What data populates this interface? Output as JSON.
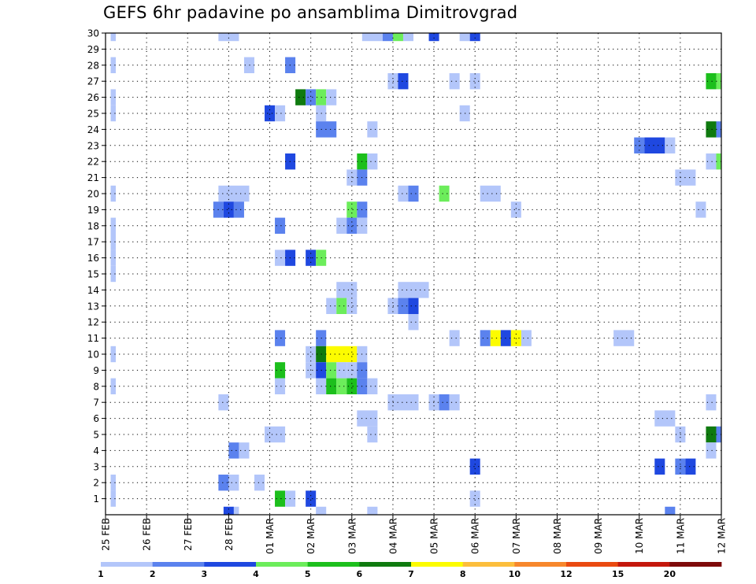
{
  "title": "GEFS 6hr padavine po ansamblima Dimitrovgrad",
  "chart_data": {
    "type": "heatmap",
    "title": "GEFS 6hr padavine po ansamblima Dimitrovgrad",
    "x_tick_labels": [
      "25 FEB",
      "26 FEB",
      "27 FEB",
      "28 FEB",
      "01 MAR",
      "02 MAR",
      "03 MAR",
      "04 MAR",
      "05 MAR",
      "06 MAR",
      "07 MAR",
      "08 MAR",
      "09 MAR",
      "10 MAR",
      "11 MAR",
      "12 MAR"
    ],
    "x_range_days": [
      0,
      15
    ],
    "steps_per_day": 4,
    "y_tick_labels": [
      "1",
      "2",
      "3",
      "4",
      "5",
      "6",
      "7",
      "8",
      "9",
      "10",
      "11",
      "12",
      "13",
      "14",
      "15",
      "16",
      "17",
      "18",
      "19",
      "20",
      "21",
      "22",
      "23",
      "24",
      "25",
      "26",
      "27",
      "28",
      "29",
      "30"
    ],
    "y_range": [
      0,
      30
    ],
    "grid": true,
    "colorbar": {
      "levels": [
        "1",
        "2",
        "3",
        "4",
        "5",
        "6",
        "7",
        "8",
        "10",
        "12",
        "15",
        "20"
      ],
      "colors": [
        "#b3c6fa",
        "#5b82ee",
        "#1f48e0",
        "#6ced5b",
        "#1cbf1c",
        "#0f7a0f",
        "#fcfc00",
        "#fcbe3c",
        "#f7872c",
        "#ea4a10",
        "#c4170c",
        "#7e0a0a"
      ]
    },
    "cells": [
      [
        30,
        0.5,
        1,
        0
      ],
      [
        30,
        11,
        13,
        0
      ],
      [
        30,
        25,
        27,
        0
      ],
      [
        30,
        27,
        28,
        1
      ],
      [
        30,
        28,
        29,
        3
      ],
      [
        30,
        29,
        30,
        0
      ],
      [
        30,
        31.5,
        32.5,
        2
      ],
      [
        30,
        34.5,
        35.5,
        0
      ],
      [
        30,
        35.5,
        36.5,
        2
      ],
      [
        28,
        0.5,
        1,
        0
      ],
      [
        28,
        13.5,
        14.5,
        0
      ],
      [
        28,
        17.5,
        18.5,
        1
      ],
      [
        27,
        27.5,
        28.5,
        0
      ],
      [
        27,
        28.5,
        29.5,
        2
      ],
      [
        27,
        33.5,
        34.5,
        0
      ],
      [
        27,
        35.5,
        36.5,
        0
      ],
      [
        27,
        58.5,
        59.5,
        4
      ],
      [
        27,
        59.5,
        60,
        3
      ],
      [
        26,
        0.5,
        1,
        0
      ],
      [
        26,
        18.5,
        19.5,
        5
      ],
      [
        26,
        19.5,
        20.5,
        1
      ],
      [
        26,
        20.5,
        21.5,
        3
      ],
      [
        26,
        21.5,
        22.5,
        0
      ],
      [
        25,
        0.5,
        1,
        0
      ],
      [
        25,
        15.5,
        16.5,
        2
      ],
      [
        25,
        16.5,
        17.5,
        0
      ],
      [
        25,
        20.5,
        21.5,
        0
      ],
      [
        25,
        34.5,
        35.5,
        0
      ],
      [
        24,
        20.5,
        22.5,
        1
      ],
      [
        24,
        25.5,
        26.5,
        0
      ],
      [
        24,
        58.5,
        59.5,
        5
      ],
      [
        24,
        59.5,
        60,
        1
      ],
      [
        23,
        51.5,
        52.5,
        1
      ],
      [
        23,
        52.5,
        54.5,
        2
      ],
      [
        23,
        54.5,
        55.5,
        0
      ],
      [
        22,
        17.5,
        18.5,
        2
      ],
      [
        22,
        24.5,
        25.5,
        4
      ],
      [
        22,
        25.5,
        26.5,
        0
      ],
      [
        22,
        58.5,
        59.5,
        0
      ],
      [
        22,
        59.5,
        60,
        3
      ],
      [
        21,
        23.5,
        24.5,
        0
      ],
      [
        21,
        24.5,
        25.5,
        1
      ],
      [
        21,
        55.5,
        57.5,
        0
      ],
      [
        20,
        0.5,
        1,
        0
      ],
      [
        20,
        11,
        14,
        0
      ],
      [
        20,
        28.5,
        29.5,
        0
      ],
      [
        20,
        29.5,
        30.5,
        1
      ],
      [
        20,
        32.5,
        33.5,
        3
      ],
      [
        20,
        36.5,
        38.5,
        0
      ],
      [
        19,
        10.5,
        11.5,
        1
      ],
      [
        19,
        11.5,
        12.5,
        2
      ],
      [
        19,
        12.5,
        13.5,
        1
      ],
      [
        19,
        23.5,
        24.5,
        3
      ],
      [
        19,
        24.5,
        25.5,
        1
      ],
      [
        19,
        39.5,
        40.5,
        0
      ],
      [
        19,
        57.5,
        58.5,
        0
      ],
      [
        18,
        0.5,
        1,
        0
      ],
      [
        18,
        16.5,
        17.5,
        1
      ],
      [
        18,
        22.5,
        23.5,
        0
      ],
      [
        18,
        23.5,
        24.5,
        1
      ],
      [
        18,
        24.5,
        25.5,
        0
      ],
      [
        17,
        0.5,
        1,
        0
      ],
      [
        16,
        0.5,
        1,
        0
      ],
      [
        16,
        16.5,
        17.5,
        0
      ],
      [
        16,
        17.5,
        18.5,
        2
      ],
      [
        16,
        19.5,
        20.5,
        2
      ],
      [
        16,
        20.5,
        21.5,
        3
      ],
      [
        15,
        0.5,
        1,
        0
      ],
      [
        14,
        22.5,
        24.5,
        0
      ],
      [
        14,
        28.5,
        31.5,
        0
      ],
      [
        13,
        21.5,
        22.5,
        0
      ],
      [
        13,
        22.5,
        23.5,
        3
      ],
      [
        13,
        23.5,
        24.5,
        0
      ],
      [
        13,
        27.5,
        28.5,
        0
      ],
      [
        13,
        28.5,
        29.5,
        1
      ],
      [
        13,
        29.5,
        30.5,
        2
      ],
      [
        12,
        29.5,
        30.5,
        0
      ],
      [
        11,
        16.5,
        17.5,
        1
      ],
      [
        11,
        20.5,
        21.5,
        1
      ],
      [
        11,
        33.5,
        34.5,
        0
      ],
      [
        11,
        36.5,
        37.5,
        1
      ],
      [
        11,
        37.5,
        38.5,
        6
      ],
      [
        11,
        38.5,
        39.5,
        2
      ],
      [
        11,
        39.5,
        40.5,
        6
      ],
      [
        11,
        40.5,
        41.5,
        0
      ],
      [
        11,
        49.5,
        51.5,
        0
      ],
      [
        10,
        0.5,
        1,
        0
      ],
      [
        10,
        19.5,
        20.5,
        0
      ],
      [
        10,
        20.5,
        21.5,
        5
      ],
      [
        10,
        21.5,
        24.5,
        6
      ],
      [
        10,
        24.5,
        25.5,
        0
      ],
      [
        9,
        16.5,
        17.5,
        4
      ],
      [
        9,
        19.5,
        20.5,
        0
      ],
      [
        9,
        20.5,
        21.5,
        2
      ],
      [
        9,
        21.5,
        22.5,
        3
      ],
      [
        9,
        22.5,
        23.5,
        0
      ],
      [
        9,
        23.5,
        24.5,
        0
      ],
      [
        9,
        24.5,
        25.5,
        1
      ],
      [
        8,
        0.5,
        1,
        0
      ],
      [
        8,
        16.5,
        17.5,
        0
      ],
      [
        8,
        20.5,
        21.5,
        0
      ],
      [
        8,
        21.5,
        22.5,
        4
      ],
      [
        8,
        22.5,
        23.5,
        3
      ],
      [
        8,
        23.5,
        24.5,
        4
      ],
      [
        8,
        24.5,
        25.5,
        1
      ],
      [
        8,
        25.5,
        26.5,
        0
      ],
      [
        7,
        11,
        12,
        0
      ],
      [
        7,
        27.5,
        30.5,
        0
      ],
      [
        7,
        31.5,
        32.5,
        0
      ],
      [
        7,
        32.5,
        33.5,
        1
      ],
      [
        7,
        33.5,
        34.5,
        0
      ],
      [
        7,
        58.5,
        59.5,
        0
      ],
      [
        6,
        24.5,
        26.5,
        0
      ],
      [
        6,
        53.5,
        55.5,
        0
      ],
      [
        5,
        15.5,
        17.5,
        0
      ],
      [
        5,
        25.5,
        26.5,
        0
      ],
      [
        5,
        55.5,
        56.5,
        0
      ],
      [
        5,
        58.5,
        59.5,
        5
      ],
      [
        5,
        59.5,
        60,
        1
      ],
      [
        4,
        12,
        13,
        1
      ],
      [
        4,
        13,
        14,
        0
      ],
      [
        4,
        58.5,
        59.5,
        0
      ],
      [
        3,
        35.5,
        36.5,
        2
      ],
      [
        3,
        53.5,
        54.5,
        2
      ],
      [
        3,
        55.5,
        56.5,
        1
      ],
      [
        3,
        56.5,
        57.5,
        2
      ],
      [
        2,
        0.5,
        1,
        0
      ],
      [
        2,
        11,
        12,
        1
      ],
      [
        2,
        12,
        13,
        0
      ],
      [
        2,
        14.5,
        15.5,
        0
      ],
      [
        1,
        0.5,
        1,
        0
      ],
      [
        1,
        16.5,
        17.5,
        4
      ],
      [
        1,
        17.5,
        18.5,
        0
      ],
      [
        1,
        19.5,
        20.5,
        2
      ],
      [
        1,
        35.5,
        36.5,
        0
      ],
      [
        0,
        11.5,
        12.5,
        2
      ],
      [
        0,
        12.5,
        13,
        0
      ],
      [
        0,
        20.5,
        21.5,
        0
      ],
      [
        0,
        25.5,
        26.5,
        0
      ],
      [
        0,
        54.5,
        55.5,
        1
      ]
    ]
  }
}
